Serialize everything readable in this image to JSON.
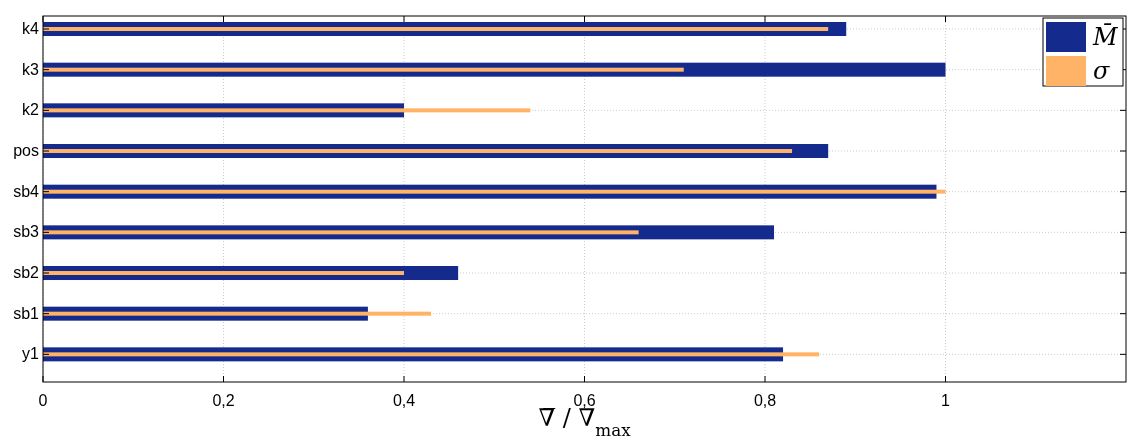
{
  "chart_data": {
    "type": "bar",
    "orientation": "horizontal",
    "categories": [
      "k4",
      "k3",
      "k2",
      "pos",
      "sb4",
      "sb3",
      "sb2",
      "sb1",
      "y1"
    ],
    "series": [
      {
        "name": "M̄",
        "color": "#142a8c",
        "values": [
          0.89,
          1.0,
          0.4,
          0.87,
          0.99,
          0.81,
          0.46,
          0.36,
          0.82
        ]
      },
      {
        "name": "σ",
        "color": "#ffb366",
        "values": [
          0.87,
          0.71,
          0.54,
          0.83,
          1.0,
          0.66,
          0.4,
          0.43,
          0.86
        ]
      }
    ],
    "xlim": [
      0,
      1.2
    ],
    "xticks": [
      0,
      {
        "value": 0.2,
        "label": "0,2"
      },
      {
        "value": 0.4,
        "label": "0,4"
      },
      {
        "value": 0.6,
        "label": "0,6"
      },
      {
        "value": 0.8,
        "label": "0,8"
      },
      1
    ],
    "xlabel": "∇̅ / ∇$_{max}$",
    "grid": true,
    "legend": "top right"
  }
}
